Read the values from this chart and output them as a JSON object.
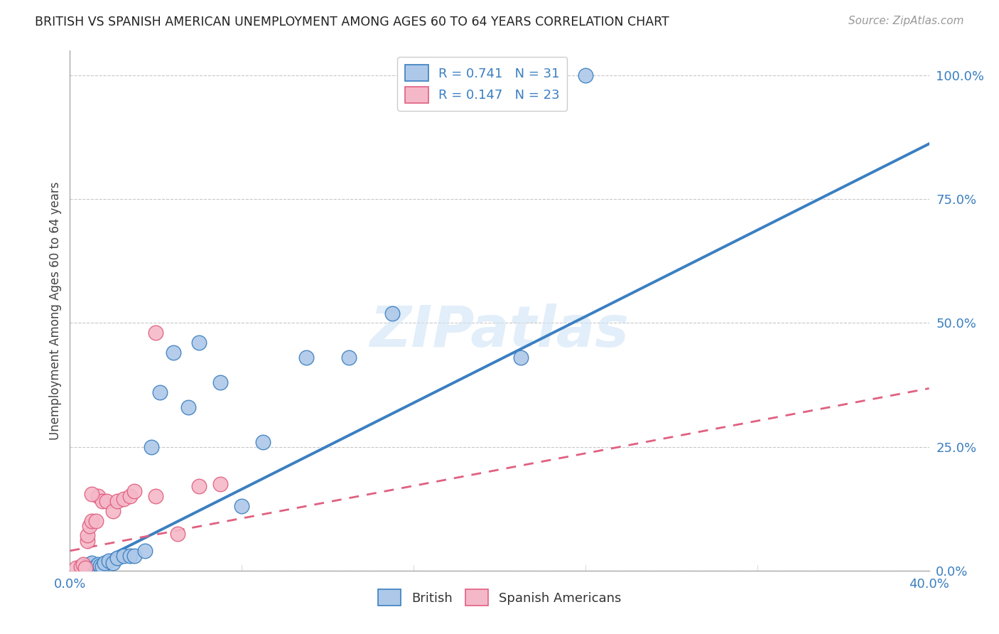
{
  "title": "BRITISH VS SPANISH AMERICAN UNEMPLOYMENT AMONG AGES 60 TO 64 YEARS CORRELATION CHART",
  "source": "Source: ZipAtlas.com",
  "ylabel": "Unemployment Among Ages 60 to 64 years",
  "x_min": 0.0,
  "x_max": 0.4,
  "y_min": 0.0,
  "y_max": 1.05,
  "x_ticks": [
    0.0,
    0.08,
    0.16,
    0.24,
    0.32,
    0.4
  ],
  "y_ticks_right": [
    0.0,
    0.25,
    0.5,
    0.75,
    1.0
  ],
  "y_tick_labels_right": [
    "0.0%",
    "25.0%",
    "50.0%",
    "75.0%",
    "100.0%"
  ],
  "british_R": 0.741,
  "british_N": 31,
  "spanish_R": 0.147,
  "spanish_N": 23,
  "british_color": "#adc8e8",
  "spanish_color": "#f5b8c8",
  "british_line_color": "#3a7fc1",
  "spanish_line_color": "#e06080",
  "british_x": [
    0.005,
    0.007,
    0.008,
    0.009,
    0.01,
    0.01,
    0.012,
    0.013,
    0.014,
    0.015,
    0.016,
    0.018,
    0.02,
    0.022,
    0.025,
    0.028,
    0.03,
    0.035,
    0.038,
    0.042,
    0.048,
    0.055,
    0.06,
    0.07,
    0.08,
    0.09,
    0.11,
    0.13,
    0.15,
    0.21,
    0.24
  ],
  "british_y": [
    0.005,
    0.01,
    0.008,
    0.012,
    0.005,
    0.015,
    0.008,
    0.012,
    0.01,
    0.008,
    0.015,
    0.02,
    0.015,
    0.025,
    0.03,
    0.03,
    0.03,
    0.04,
    0.25,
    0.36,
    0.44,
    0.33,
    0.46,
    0.38,
    0.13,
    0.26,
    0.43,
    0.43,
    0.52,
    0.43,
    1.0
  ],
  "spanish_x": [
    0.003,
    0.005,
    0.006,
    0.007,
    0.008,
    0.008,
    0.009,
    0.01,
    0.012,
    0.013,
    0.015,
    0.017,
    0.02,
    0.022,
    0.025,
    0.028,
    0.03,
    0.04,
    0.05,
    0.06,
    0.07,
    0.04,
    0.01
  ],
  "spanish_y": [
    0.005,
    0.008,
    0.012,
    0.005,
    0.06,
    0.072,
    0.09,
    0.1,
    0.1,
    0.15,
    0.14,
    0.14,
    0.12,
    0.14,
    0.145,
    0.15,
    0.16,
    0.15,
    0.075,
    0.17,
    0.175,
    0.48,
    0.155
  ],
  "watermark": "ZIPatlas",
  "background_color": "#ffffff",
  "grid_color": "#c8c8c8"
}
